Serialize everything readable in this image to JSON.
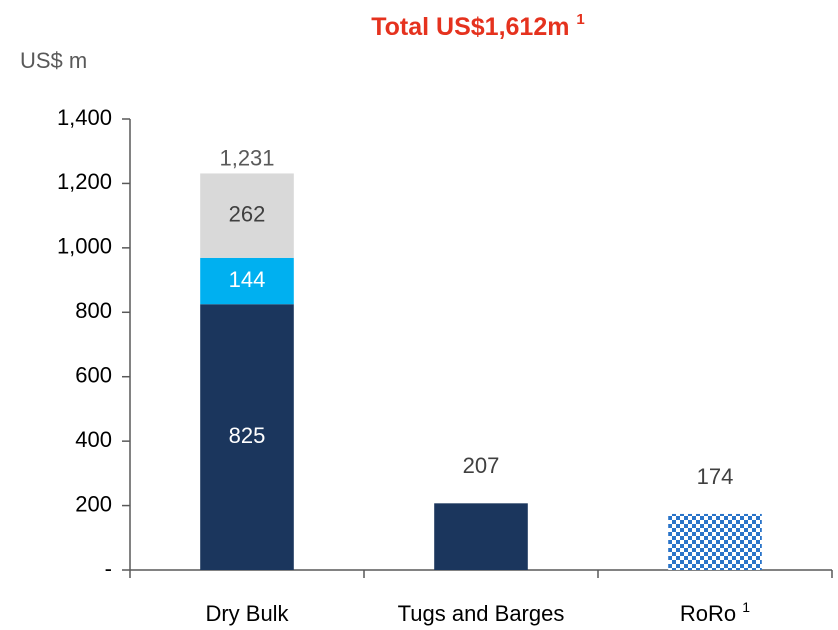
{
  "chart_data": {
    "type": "stacked_bar",
    "title": "Total US$1,612m",
    "title_note": "1",
    "y_label": "US$ m",
    "categories": [
      "Dry Bulk",
      "Tugs and Barges",
      "RoRo"
    ],
    "category_notes": [
      null,
      null,
      "1"
    ],
    "series": [
      {
        "color": "#1b365d",
        "label_color": "#ffffff",
        "values": [
          825,
          null,
          null
        ]
      },
      {
        "color": "#00b0f0",
        "label_color": "#ffffff",
        "values": [
          144,
          null,
          null
        ]
      },
      {
        "color": "#d9d9d9",
        "label_color": "#404040",
        "values": [
          262,
          null,
          null
        ]
      }
    ],
    "outside_labels": [
      {
        "series": 0,
        "category": 1
      }
    ],
    "series_extra": [
      {
        "color": "#1b365d",
        "label_color": "#404040",
        "values": [
          null,
          207,
          null
        ]
      },
      {
        "color": "#2a74c9",
        "pattern": "checker",
        "label_color": "#404040",
        "values": [
          null,
          null,
          174
        ]
      }
    ],
    "totals": {
      "values": [
        1231,
        null,
        null
      ],
      "value_labels": [
        "1,231",
        null,
        null
      ]
    },
    "ylim": [
      0,
      1400
    ],
    "yticks": [
      {
        "value": 0,
        "label": "-"
      },
      200,
      400,
      600,
      800,
      {
        "value": 1000,
        "label": "1,000"
      },
      {
        "value": 1200,
        "label": "1,200"
      },
      {
        "value": 1400,
        "label": "1,400"
      }
    ],
    "grid": false
  }
}
